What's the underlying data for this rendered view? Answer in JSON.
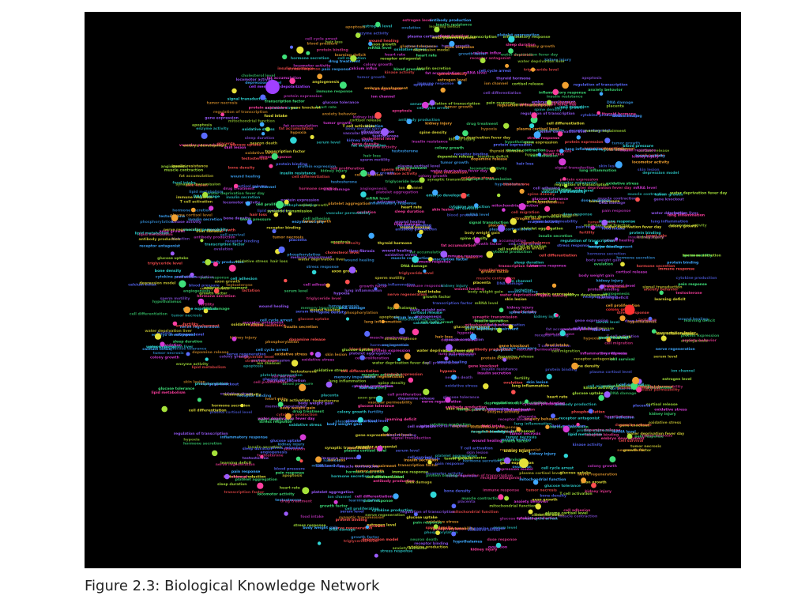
{
  "caption": "Figure 2.3: Biological Knowledge Network",
  "figure": {
    "background": "#000000",
    "palette": [
      "#d63bd6",
      "#9b5cff",
      "#5a6bff",
      "#3fa9ff",
      "#2fd6d6",
      "#3fe07a",
      "#a6e23a",
      "#e6e23a",
      "#f0a030",
      "#ff5050",
      "#ff3fa0"
    ],
    "hubs": [
      {
        "color": "#a040ff",
        "label": "cell membrane depolarization"
      },
      {
        "color": "#ff3030",
        "label": "colony growth"
      },
      {
        "color": "#e6e23a",
        "label": "gene expression"
      },
      {
        "color": "#3fe07a",
        "label": "cell proliferation"
      },
      {
        "color": "#9b5cff",
        "label": "phosphorylation"
      }
    ],
    "labels": [
      "water deprivation liver",
      "regulation of transcription",
      "cell proliferation",
      "hypothalamus",
      "water deprivation fever day",
      "tumor necrosis",
      "signal transduction",
      "insulin secretion",
      "protein binding",
      "receptor antagonist",
      "blood pressure",
      "plasma cortisol level",
      "glucose uptake",
      "cell migration",
      "gene expression",
      "apoptosis",
      "colony growth",
      "phosphorylation",
      "oxidative stress",
      "inflammatory response",
      "mRNA level",
      "body weight gain",
      "heart rate",
      "neuron death",
      "calcium influx",
      "dopamine release",
      "serum level",
      "kinase activity",
      "synaptic transmission",
      "hypoxia",
      "mitochondrial function",
      "DNA damage",
      "cell cycle arrest",
      "T cell activation",
      "memory impairment",
      "food intake",
      "wound healing",
      "angiogenesis",
      "muscle contraction",
      "bone density",
      "liver fibrosis",
      "kidney injury",
      "lung inflammation",
      "insulin resistance",
      "cytokine production",
      "growth factor",
      "learning deficit",
      "locomotor activity",
      "pain response",
      "sleep duration",
      "fat accumulation",
      "tumor growth",
      "cell differentiation",
      "protein expression",
      "enzyme activity",
      "ion channel",
      "receptor binding",
      "hormone secretion",
      "immune response",
      "antibody production",
      "gene knockout",
      "transcription factor",
      "nerve regeneration",
      "drug treatment",
      "dose response",
      "skin lesion",
      "hair loss",
      "cell adhesion",
      "vascular permeability",
      "platelet aggregation",
      "cholesterol level",
      "triglyceride level",
      "glucose tolerance",
      "lipid metabolism",
      "cell survival",
      "axon growth",
      "spine density",
      "anxiety behavior",
      "depression model",
      "stress response",
      "cortisol release",
      "thyroid hormone",
      "estrogen level",
      "testosterone",
      "ovulation",
      "embryo development",
      "fertility",
      "sperm motility",
      "placenta",
      "lactation"
    ]
  }
}
